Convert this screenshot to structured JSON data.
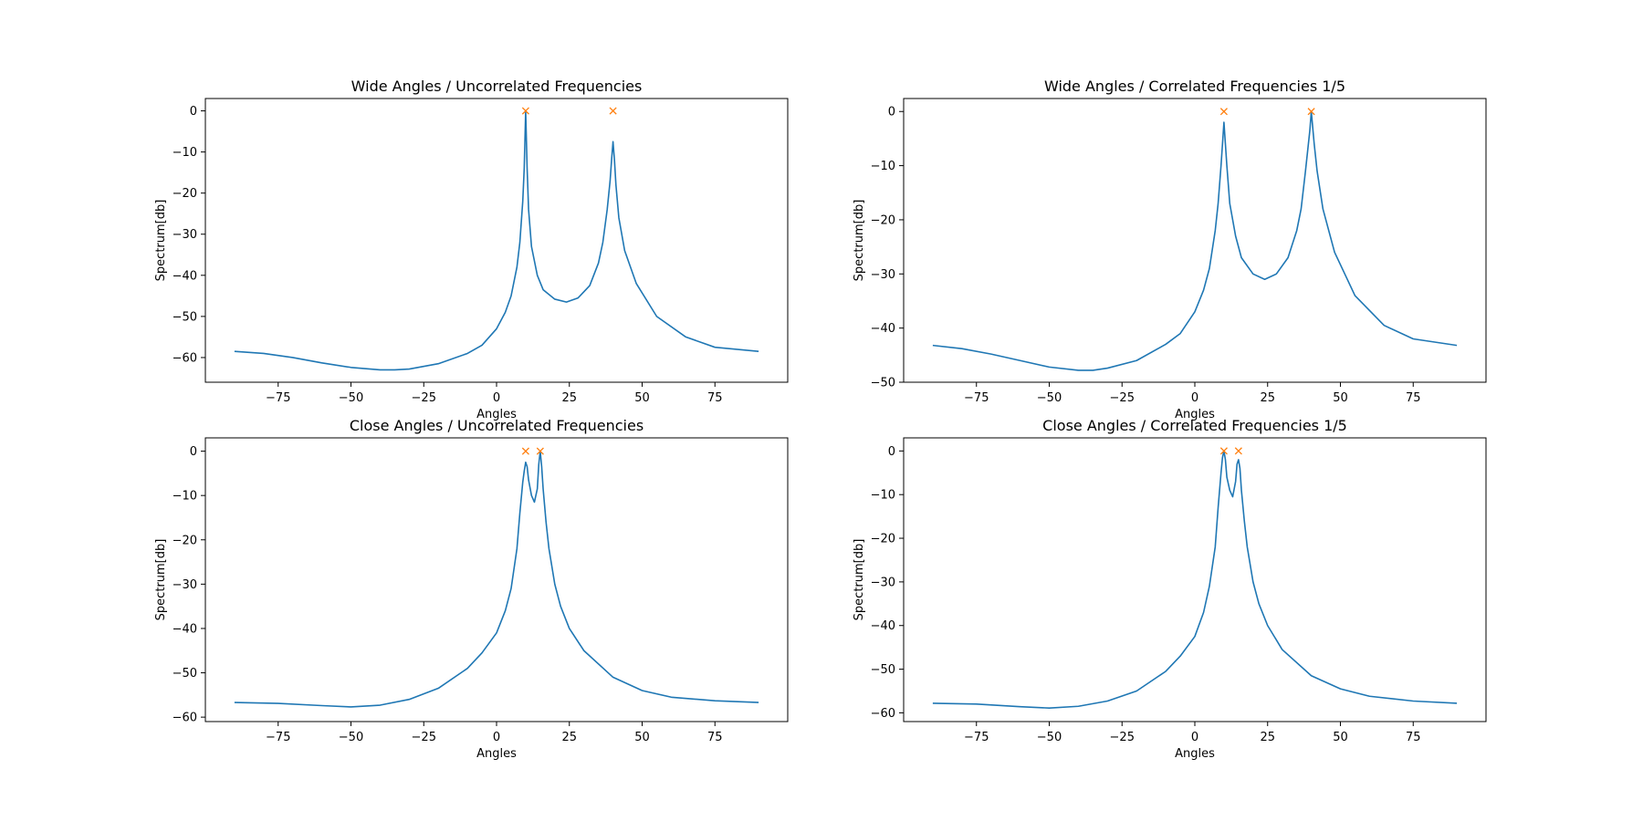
{
  "chart_data": [
    {
      "type": "line",
      "title": "Wide Angles / Uncorrelated Frequencies",
      "xlabel": "Angles",
      "ylabel": "Spectrum[db]",
      "xlim": [
        -100,
        100
      ],
      "ylim": [
        -66,
        3
      ],
      "xticks": [
        -75,
        -50,
        -25,
        0,
        25,
        50,
        75
      ],
      "yticks": [
        -60,
        -50,
        -40,
        -30,
        -20,
        -10,
        0
      ],
      "grid": false,
      "colors": {
        "line": "#1f77b4",
        "marker": "#ff7f0e"
      },
      "series": [
        {
          "values_x": [
            -90,
            -80,
            -70,
            -60,
            -50,
            -40,
            -35,
            -30,
            -20,
            -10,
            -5,
            0,
            3,
            5,
            7,
            8,
            9,
            9.5,
            10,
            10.5,
            11,
            12,
            14,
            16,
            20,
            24,
            28,
            32,
            35,
            36.5,
            38,
            39,
            39.5,
            40,
            40.5,
            41,
            42,
            44,
            48,
            55,
            65,
            75,
            90
          ],
          "values_y": [
            -58.5,
            -59,
            -60,
            -61.3,
            -62.4,
            -63,
            -63,
            -62.8,
            -61.5,
            -59,
            -57,
            -53,
            -49,
            -45,
            -38,
            -32,
            -22,
            -14,
            0,
            -14,
            -24,
            -33,
            -40,
            -43.5,
            -45.8,
            -46.5,
            -45.5,
            -42.5,
            -37,
            -32,
            -24,
            -17,
            -12,
            -7.5,
            -12,
            -18,
            -26,
            -34,
            -42,
            -50,
            -55,
            -57.5,
            -58.5
          ]
        }
      ],
      "markers": {
        "x": [
          10,
          40
        ],
        "y": [
          0,
          0
        ],
        "symbol": "x"
      }
    },
    {
      "type": "line",
      "title": "Wide Angles / Correlated Frequencies 1/5",
      "xlabel": "Angles",
      "ylabel": "Spectrum[db]",
      "xlim": [
        -100,
        100
      ],
      "ylim": [
        -50,
        2.4
      ],
      "xticks": [
        -75,
        -50,
        -25,
        0,
        25,
        50,
        75
      ],
      "yticks": [
        -50,
        -40,
        -30,
        -20,
        -10,
        0
      ],
      "grid": false,
      "colors": {
        "line": "#1f77b4",
        "marker": "#ff7f0e"
      },
      "series": [
        {
          "values_x": [
            -90,
            -80,
            -70,
            -60,
            -50,
            -40,
            -35,
            -30,
            -20,
            -10,
            -5,
            0,
            3,
            5,
            7,
            8,
            9,
            9.5,
            10,
            10.5,
            11,
            12,
            14,
            16,
            20,
            24,
            28,
            32,
            35,
            36.5,
            38,
            39,
            39.5,
            40,
            40.5,
            41,
            42,
            44,
            48,
            55,
            65,
            75,
            90
          ],
          "values_y": [
            -43.2,
            -43.8,
            -44.8,
            -46,
            -47.2,
            -47.8,
            -47.8,
            -47.4,
            -46,
            -43,
            -41,
            -37,
            -33,
            -29,
            -22,
            -17,
            -10,
            -6,
            -2,
            -6,
            -10,
            -17,
            -23,
            -27,
            -30,
            -31,
            -30,
            -27,
            -22,
            -18,
            -11,
            -6,
            -3.5,
            0,
            -3,
            -6,
            -11,
            -18,
            -26,
            -34,
            -39.5,
            -42,
            -43.2
          ]
        }
      ],
      "markers": {
        "x": [
          10,
          40
        ],
        "y": [
          0,
          0
        ],
        "symbol": "x"
      }
    },
    {
      "type": "line",
      "title": "Close Angles / Uncorrelated Frequencies",
      "xlabel": "Angles",
      "ylabel": "Spectrum[db]",
      "xlim": [
        -100,
        100
      ],
      "ylim": [
        -61,
        3
      ],
      "xticks": [
        -75,
        -50,
        -25,
        0,
        25,
        50,
        75
      ],
      "yticks": [
        -60,
        -50,
        -40,
        -30,
        -20,
        -10,
        0
      ],
      "grid": false,
      "colors": {
        "line": "#1f77b4",
        "marker": "#ff7f0e"
      },
      "series": [
        {
          "values_x": [
            -90,
            -75,
            -60,
            -50,
            -40,
            -30,
            -20,
            -10,
            -5,
            0,
            3,
            5,
            7,
            8,
            9,
            9.5,
            10,
            10.5,
            11,
            12,
            13,
            14,
            14.5,
            15,
            15.5,
            16,
            17,
            18,
            20,
            22,
            25,
            30,
            40,
            50,
            60,
            75,
            90
          ],
          "values_y": [
            -56.7,
            -56.9,
            -57.4,
            -57.7,
            -57.3,
            -56,
            -53.5,
            -49,
            -45.5,
            -41,
            -36,
            -31,
            -22,
            -14,
            -7,
            -4.5,
            -2.5,
            -3.5,
            -6.5,
            -10,
            -11.5,
            -8.5,
            -3,
            0,
            -3.5,
            -8.5,
            -16,
            -22,
            -30,
            -35,
            -40,
            -45,
            -51,
            -54,
            -55.5,
            -56.3,
            -56.7
          ]
        }
      ],
      "markers": {
        "x": [
          10,
          15
        ],
        "y": [
          0,
          0
        ],
        "symbol": "x"
      }
    },
    {
      "type": "line",
      "title": "Close Angles / Correlated Frequencies 1/5",
      "xlabel": "Angles",
      "ylabel": "Spectrum[db]",
      "xlim": [
        -100,
        100
      ],
      "ylim": [
        -62,
        3
      ],
      "xticks": [
        -75,
        -50,
        -25,
        0,
        25,
        50,
        75
      ],
      "yticks": [
        -60,
        -50,
        -40,
        -30,
        -20,
        -10,
        0
      ],
      "grid": false,
      "colors": {
        "line": "#1f77b4",
        "marker": "#ff7f0e"
      },
      "series": [
        {
          "values_x": [
            -90,
            -75,
            -60,
            -50,
            -40,
            -30,
            -20,
            -10,
            -5,
            0,
            3,
            5,
            7,
            8,
            9,
            9.5,
            10,
            10.5,
            11,
            12,
            13,
            14,
            14.5,
            15,
            15.5,
            16,
            17,
            18,
            20,
            22,
            25,
            30,
            40,
            50,
            60,
            75,
            90
          ],
          "values_y": [
            -57.8,
            -58,
            -58.6,
            -58.9,
            -58.5,
            -57.3,
            -55,
            -50.5,
            -47,
            -42.5,
            -37,
            -31,
            -22,
            -13,
            -5,
            -1.5,
            0,
            -2,
            -6,
            -9,
            -10.5,
            -7,
            -3,
            -2,
            -4,
            -9,
            -16,
            -22,
            -30,
            -35,
            -40,
            -45.5,
            -51.5,
            -54.5,
            -56.2,
            -57.3,
            -57.8
          ]
        }
      ],
      "markers": {
        "x": [
          10,
          15
        ],
        "y": [
          0,
          0
        ],
        "symbol": "x"
      }
    }
  ]
}
